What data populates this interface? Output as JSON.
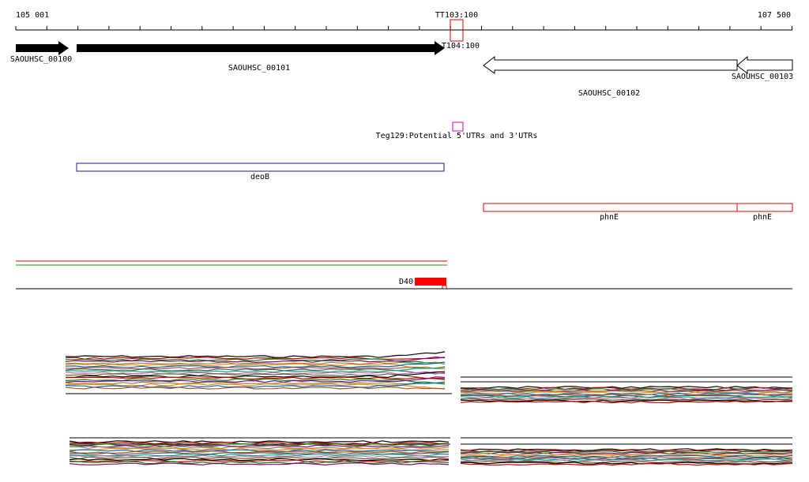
{
  "ruler": {
    "start": "105 001",
    "end": "107 500",
    "markers": [
      "TT103:100",
      "T104:100"
    ]
  },
  "genes": [
    "SAOUHSC_00100",
    "SAOUHSC_00101",
    "SAOUHSC_00102",
    "SAOUHSC_00103"
  ],
  "feature": {
    "label": "Teg129:Potential 5'UTRs and 3'UTRs"
  },
  "operons": [
    "deoB",
    "phnE",
    "phnE"
  ],
  "probe": {
    "label": "D40"
  }
}
